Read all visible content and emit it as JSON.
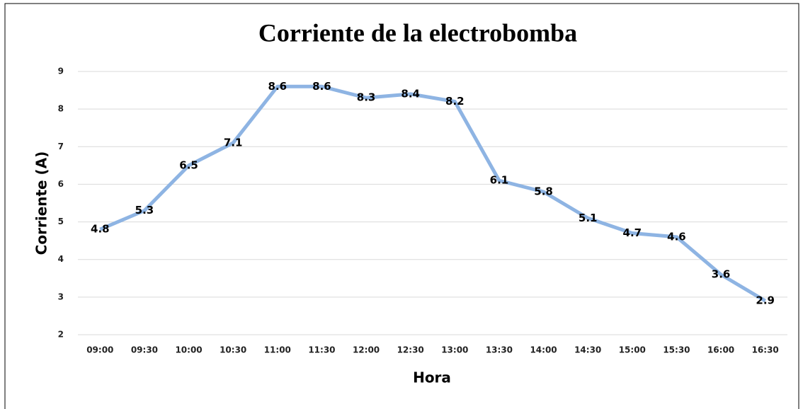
{
  "chart_data": {
    "type": "line",
    "title": "Corriente de la electrobomba",
    "x_label": "Hora",
    "y_label": "Corriente (A)",
    "categories": [
      "09:00",
      "09:30",
      "10:00",
      "10:30",
      "11:00",
      "11:30",
      "12:00",
      "12:30",
      "13:00",
      "13:30",
      "14:00",
      "14:30",
      "15:00",
      "15:30",
      "16:00",
      "16:30"
    ],
    "series": [
      {
        "name": "Corriente",
        "color": "#8eb4e3",
        "values": [
          4.8,
          5.3,
          6.5,
          7.1,
          8.6,
          8.6,
          8.3,
          8.4,
          8.2,
          6.1,
          5.8,
          5.1,
          4.7,
          4.6,
          3.6,
          2.9
        ]
      }
    ],
    "ylim": [
      2,
      9
    ],
    "yticks": [
      2,
      3,
      4,
      5,
      6,
      7,
      8,
      9
    ],
    "grid": true
  }
}
